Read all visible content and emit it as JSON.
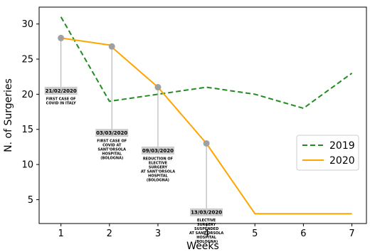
{
  "chart_data": {
    "type": "line",
    "xlabel": "Weeks",
    "ylabel": "N. of Surgeries",
    "xlim": [
      0.55,
      7.3
    ],
    "ylim": [
      1.6,
      32.4
    ],
    "xticks": [
      1,
      2,
      3,
      4,
      5,
      6,
      7
    ],
    "yticks": [
      5,
      10,
      15,
      20,
      25,
      30
    ],
    "grid": false,
    "legend_position": "center-right",
    "series": [
      {
        "name": "2019",
        "color": "#228B22",
        "style": "dashed",
        "points": [
          [
            1,
            31
          ],
          [
            2,
            19
          ],
          [
            3,
            20
          ],
          [
            4,
            21
          ],
          [
            5,
            20
          ],
          [
            6,
            18
          ],
          [
            7,
            23
          ]
        ]
      },
      {
        "name": "2020",
        "color": "#FFA500",
        "style": "solid",
        "points": [
          [
            1,
            28
          ],
          [
            2,
            27
          ],
          [
            3,
            21
          ],
          [
            4,
            13
          ],
          [
            5,
            3
          ],
          [
            6,
            3
          ],
          [
            7,
            3
          ]
        ]
      }
    ],
    "annotations": [
      {
        "date": "21/02/2020",
        "lines": [
          "FIRST CASE OF",
          "COVID IN ITALY"
        ],
        "x": 1,
        "y": 28,
        "label_y": 20.5
      },
      {
        "date": "03/03/2020",
        "lines": [
          "FIRST CASE OF",
          "COVID AT",
          "SANT'ORSOLA",
          "HOSPITAL",
          "(BOLOGNA)"
        ],
        "x": 2.05,
        "y": 26.8,
        "label_y": 14.5
      },
      {
        "date": "09/03/2020",
        "lines": [
          "REDUCTION OF",
          "ELECTIVE",
          "SURGERY",
          "AT SANT'ORSOLA",
          "HOSPITAL",
          "(BOLOGNA)"
        ],
        "x": 3,
        "y": 21,
        "label_y": 12
      },
      {
        "date": "13/03/2020",
        "lines": [
          "ELECTIVE",
          "SURGERY",
          "SUSPENDED",
          "AT SANT'ORSOLA",
          "HOSPITAL",
          "(BOLOGNA)"
        ],
        "x": 4,
        "y": 13,
        "label_y": 3.2
      }
    ]
  }
}
